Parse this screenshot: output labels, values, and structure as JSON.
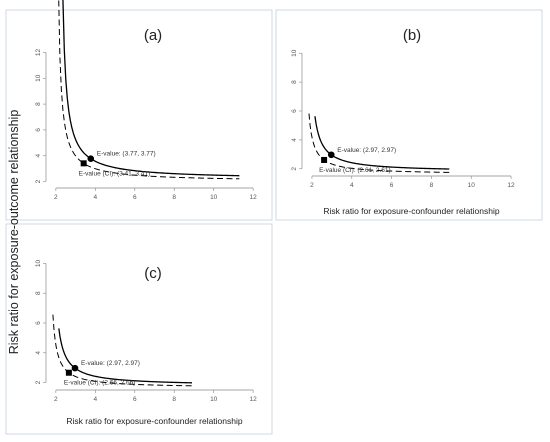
{
  "figure": {
    "ylabel": "Risk ratio for exposure-outcome relationship"
  },
  "chart_data": [
    {
      "type": "line",
      "panel": "(a)",
      "xlabel": "",
      "ylabel": "",
      "xlim": [
        1.5,
        12.5
      ],
      "ylim": [
        1.5,
        12.5
      ],
      "xticks": [
        2,
        4,
        6,
        8,
        10,
        12
      ],
      "yticks": [
        2,
        4,
        6,
        8,
        10,
        12
      ],
      "evalue": [
        3.77,
        3.77
      ],
      "evalue_ci": [
        3.41,
        3.41
      ],
      "x_range": [
        2.2,
        11.3
      ],
      "x_range_ci": [
        2.05,
        11.3
      ],
      "evalue_label": "E-value: (3.77, 3.77)",
      "evalue_ci_label": "E-value (CI): (3.41, 3.41)"
    },
    {
      "type": "line",
      "panel": "(b)",
      "xlabel": "Risk ratio for exposure-confounder relationship",
      "ylabel": "",
      "xlim": [
        1.5,
        12.5
      ],
      "ylim": [
        1.5,
        10.5
      ],
      "xticks": [
        2,
        4,
        6,
        8,
        10,
        12
      ],
      "yticks": [
        2,
        4,
        6,
        8,
        10
      ],
      "evalue": [
        2.97,
        2.97
      ],
      "evalue_ci": [
        2.61,
        2.61
      ],
      "x_range": [
        2.15,
        8.9
      ],
      "x_range_ci": [
        1.85,
        8.9
      ],
      "evalue_label": "E-value: (2.97, 2.97)",
      "evalue_ci_label": "E-value (CI): (2.61, 2.61)"
    },
    {
      "type": "line",
      "panel": "(c)",
      "xlabel": "Risk ratio for exposure-confounder relationship",
      "ylabel": "",
      "xlim": [
        1.5,
        12.5
      ],
      "ylim": [
        1.5,
        10.5
      ],
      "xticks": [
        2,
        4,
        6,
        8,
        10,
        12
      ],
      "yticks": [
        2,
        4,
        6,
        8,
        10
      ],
      "evalue": [
        2.97,
        2.97
      ],
      "evalue_ci": [
        2.66,
        2.66
      ],
      "x_range": [
        2.15,
        8.9
      ],
      "x_range_ci": [
        1.85,
        8.9
      ],
      "evalue_label": "E-value: (2.97, 2.97)",
      "evalue_ci_label": "E-value (CI): (2.66, 2.66)"
    }
  ]
}
